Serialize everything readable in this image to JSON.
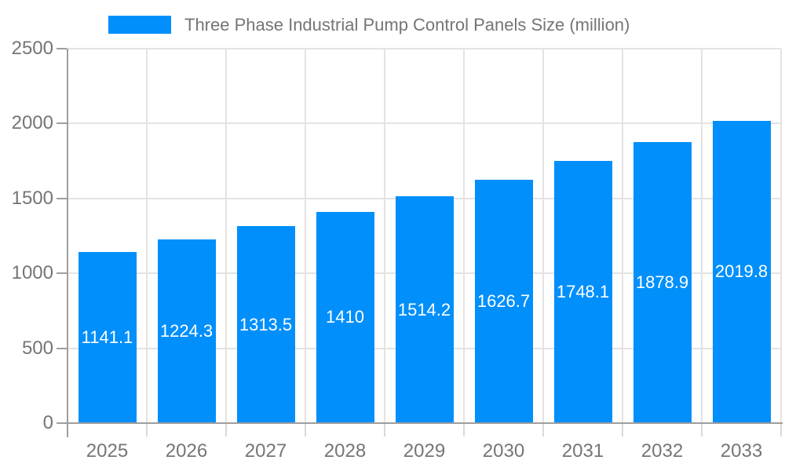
{
  "legend": {
    "label": "Three Phase Industrial Pump Control Panels Size (million)"
  },
  "chart_data": {
    "type": "bar",
    "title": "Three Phase Industrial Pump Control Panels Size (million)",
    "categories": [
      "2025",
      "2026",
      "2027",
      "2028",
      "2029",
      "2030",
      "2031",
      "2032",
      "2033"
    ],
    "values": [
      1141.1,
      1224.3,
      1313.5,
      1410,
      1514.2,
      1626.7,
      1748.1,
      1878.9,
      2019.8
    ],
    "series": [
      {
        "name": "Three Phase Industrial Pump Control Panels Size (million)",
        "values": [
          1141.1,
          1224.3,
          1313.5,
          1410,
          1514.2,
          1626.7,
          1748.1,
          1878.9,
          2019.8
        ]
      }
    ],
    "data_labels": [
      "1141.1",
      "1224.3",
      "1313.5",
      "1410",
      "1514.2",
      "1626.7",
      "1748.1",
      "1878.9",
      "2019.8"
    ],
    "xlabel": "",
    "ylabel": "",
    "ylim": [
      0,
      2500
    ],
    "yticks": [
      0,
      500,
      1000,
      1500,
      2000,
      2500
    ],
    "grid": true,
    "legend_position": "top",
    "colors": {
      "bar": "#008FFB",
      "data_label": "#FFFFFF",
      "axis_text": "#757575",
      "grid_line": "#E3E3E3",
      "axis_line": "#9E9E9E",
      "minor_tick": "#D9D9D9",
      "background": "#FFFFFF"
    }
  }
}
